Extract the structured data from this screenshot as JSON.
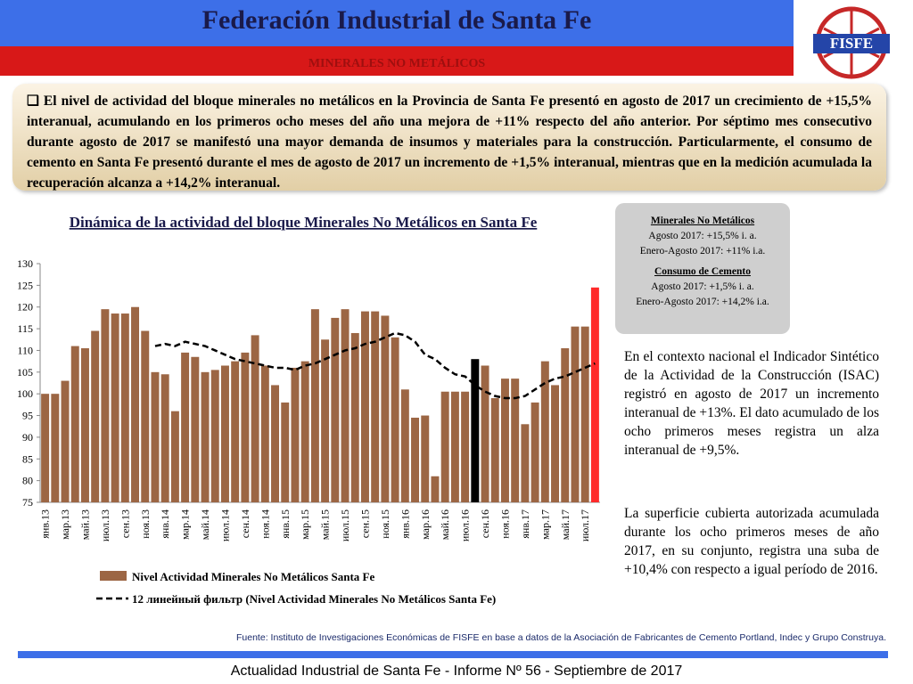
{
  "header": {
    "title": "Federación Industrial de Santa Fe",
    "subtitle": "MINERALES NO METÁLICOS",
    "logo": "FISFE"
  },
  "intro": "El nivel de actividad del bloque minerales no metálicos en la Provincia de Santa Fe presentó en agosto de 2017 un crecimiento de +15,5% interanual, acumulando en los primeros ocho meses del año una mejora de +11% respecto del año anterior. Por séptimo mes consecutivo durante agosto de 2017 se manifestó una mayor demanda de insumos y materiales para la construcción. Particularmente, el consumo de cemento en Santa Fe presentó durante el mes de agosto de 2017 un incremento de +1,5% interanual, mientras que en la medición acumulada la recuperación alcanza a +14,2% interanual.",
  "summary_box": [
    "Minerales No Metálicos",
    "Agosto 2017: +15,5% i. a.",
    "Enero-Agosto 2017: +11% i.a.",
    "Consumo de Cemento",
    "Agosto 2017: +1,5% i. a.",
    "Enero-Agosto 2017: +14,2% i.a."
  ],
  "side_text": [
    "En el contexto nacional el Indicador Sintético de la Actividad de la Construcción (ISAC) registró en agosto de 2017 un incremento interanual de +13%. El dato acumulado de los ocho primeros meses registra un alza interanual de +9,5%.",
    "La superficie cubierta autorizada acumulada durante los ocho primeros meses de año 2017, en su conjunto, registra una suba de +10,4% con respecto a igual período de 2016."
  ],
  "source": "Fuente: Instituto de Investigaciones Económicas de FISFE en base a datos de la Asociación de Fabricantes de Cemento Portland, Indec y Grupo Construya.",
  "footer": "Actualidad Industrial de Santa Fe - Informe Nº 56 - Septiembre de 2017",
  "chart_data": {
    "type": "bar",
    "title": "Dinámica de la actividad del bloque Minerales No Metálicos en Santa Fe",
    "categories": [
      "янв.13",
      null,
      "мар.13",
      null,
      "май.13",
      null,
      "июл.13",
      null,
      "сен.13",
      null,
      "ноя.13",
      null,
      "янв.14",
      null,
      "мар.14",
      null,
      "май.14",
      null,
      "июл.14",
      null,
      "сен.14",
      null,
      "ноя.14",
      null,
      "янв.15",
      null,
      "мар.15",
      null,
      "май.15",
      null,
      "июл.15",
      null,
      "сен.15",
      null,
      "ноя.15",
      null,
      "янв.16",
      null,
      "мар.16",
      null,
      "май.16",
      null,
      "июл.16",
      null,
      "сен.16",
      null,
      "ноя.16",
      null,
      "янв.17",
      null,
      "мар.17",
      null,
      "май.17",
      null,
      "июл.17",
      null
    ],
    "series": [
      {
        "name": "Nivel Actividad Minerales No Metálicos Santa Fe",
        "color": "#9c6644",
        "colors": [
          "#9c6644",
          "#9c6644",
          "#9c6644",
          "#9c6644",
          "#9c6644",
          "#9c6644",
          "#9c6644",
          "#9c6644",
          "#9c6644",
          "#9c6644",
          "#9c6644",
          "#9c6644",
          "#9c6644",
          "#9c6644",
          "#9c6644",
          "#9c6644",
          "#9c6644",
          "#9c6644",
          "#9c6644",
          "#9c6644",
          "#9c6644",
          "#9c6644",
          "#9c6644",
          "#9c6644",
          "#9c6644",
          "#9c6644",
          "#9c6644",
          "#9c6644",
          "#9c6644",
          "#9c6644",
          "#9c6644",
          "#9c6644",
          "#9c6644",
          "#9c6644",
          "#9c6644",
          "#9c6644",
          "#9c6644",
          "#9c6644",
          "#9c6644",
          "#9c6644",
          "#9c6644",
          "#9c6644",
          "#9c6644",
          "#000000",
          "#9c6644",
          "#9c6644",
          "#9c6644",
          "#9c6644",
          "#9c6644",
          "#9c6644",
          "#9c6644",
          "#9c6644",
          "#9c6644",
          "#9c6644",
          "#9c6644",
          "#ff2a2a"
        ],
        "values": [
          100,
          100,
          103,
          111,
          110.5,
          114.5,
          119.5,
          118.5,
          118.5,
          120,
          114.5,
          105,
          104.5,
          96,
          109.5,
          108.5,
          105,
          105.5,
          106.5,
          107.5,
          109.5,
          113.5,
          106.5,
          102,
          98,
          106,
          107.5,
          119.5,
          112.5,
          117.5,
          119.5,
          114,
          119,
          119,
          118,
          113,
          101,
          94.5,
          95,
          81,
          100.5,
          100.5,
          100.5,
          108,
          106.5,
          99,
          103.5,
          103.5,
          93,
          98,
          107.5,
          102,
          110.5,
          115.5,
          115.5,
          124.5
        ]
      },
      {
        "name": "12 линейный фильтр (Nivel Actividad Minerales No Metálicos Santa Fe)",
        "type": "line",
        "color": "#000000",
        "dashed": true,
        "values": [
          null,
          null,
          null,
          null,
          null,
          null,
          null,
          null,
          null,
          null,
          null,
          111,
          111.5,
          111,
          112,
          111.5,
          111,
          110,
          109,
          108,
          107.5,
          107,
          106.5,
          106,
          106,
          105.5,
          106.5,
          107,
          108,
          109,
          110,
          110.5,
          111.5,
          112,
          113,
          114,
          113.5,
          112,
          109,
          108,
          106,
          104.5,
          104,
          102,
          100.5,
          99.5,
          99,
          99,
          99.5,
          101,
          102.5,
          103.5,
          104,
          105,
          106,
          107
        ]
      }
    ],
    "ylim": [
      75,
      130
    ],
    "yticks": [
      75,
      80,
      85,
      90,
      95,
      100,
      105,
      110,
      115,
      120,
      125,
      130
    ],
    "grid": false
  }
}
